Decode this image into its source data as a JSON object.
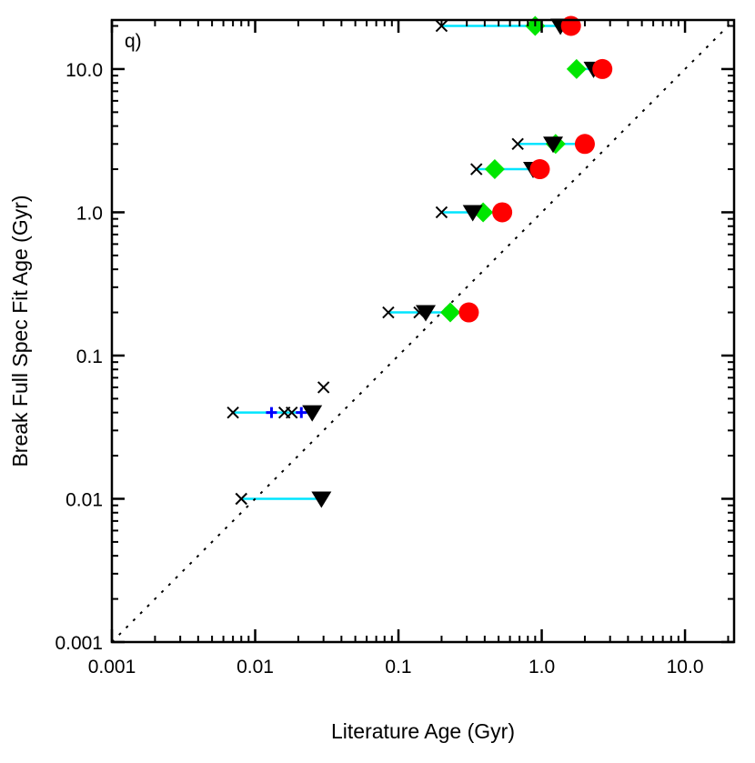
{
  "chart_data": {
    "type": "scatter",
    "panel_label": "q)",
    "xlabel": "Literature Age (Gyr)",
    "ylabel": "Break Full Spec Fit Age (Gyr)",
    "xscale": "log",
    "yscale": "log",
    "xlim": [
      0.001,
      22
    ],
    "ylim": [
      0.001,
      22
    ],
    "x_ticks": [
      {
        "value": 0.001,
        "label": "0.001"
      },
      {
        "value": 0.01,
        "label": "0.01"
      },
      {
        "value": 0.1,
        "label": "0.1"
      },
      {
        "value": 1.0,
        "label": "1.0"
      },
      {
        "value": 10.0,
        "label": "10.0"
      }
    ],
    "y_ticks": [
      {
        "value": 0.001,
        "label": "0.001"
      },
      {
        "value": 0.01,
        "label": "0.01"
      },
      {
        "value": 0.1,
        "label": "0.1"
      },
      {
        "value": 1.0,
        "label": "1.0"
      },
      {
        "value": 10.0,
        "label": "10.0"
      }
    ],
    "reference_line": {
      "type": "one-to-one",
      "style": "dotted",
      "color": "#000000"
    },
    "connector_color": "#00e5ff",
    "connectors": [
      {
        "y": 20,
        "x_range": [
          0.2,
          1.65
        ]
      },
      {
        "y": 10,
        "x_range": [
          1.75,
          2.75
        ]
      },
      {
        "y": 3,
        "x_range": [
          0.68,
          2.05
        ]
      },
      {
        "y": 2,
        "x_range": [
          0.35,
          0.98
        ]
      },
      {
        "y": 1,
        "x_range": [
          0.2,
          0.55
        ]
      },
      {
        "y": 0.2,
        "x_range": [
          0.085,
          0.31
        ]
      },
      {
        "y": 0.04,
        "x_range": [
          0.007,
          0.026
        ]
      },
      {
        "y": 0.01,
        "x_range": [
          0.008,
          0.029
        ]
      }
    ],
    "series": [
      {
        "name": "cross",
        "color": "#000000",
        "marker": "x",
        "points": [
          [
            0.2,
            20
          ],
          [
            0.68,
            3
          ],
          [
            0.35,
            2
          ],
          [
            0.2,
            1
          ],
          [
            0.085,
            0.2
          ],
          [
            0.14,
            0.2
          ],
          [
            0.007,
            0.04
          ],
          [
            0.016,
            0.04
          ],
          [
            0.018,
            0.04
          ],
          [
            0.03,
            0.06
          ],
          [
            0.008,
            0.01
          ]
        ]
      },
      {
        "name": "blue-plus",
        "color": "#0000ff",
        "marker": "+",
        "points": [
          [
            0.013,
            0.04
          ],
          [
            0.021,
            0.04
          ]
        ]
      },
      {
        "name": "green-diamond",
        "color": "#00e600",
        "marker": "diamond",
        "points": [
          [
            0.9,
            20
          ],
          [
            1.75,
            10
          ],
          [
            1.25,
            3
          ],
          [
            0.47,
            2
          ],
          [
            0.39,
            1
          ],
          [
            0.23,
            0.2
          ]
        ]
      },
      {
        "name": "black-triangle",
        "color": "#000000",
        "marker": "triangle-down",
        "points": [
          [
            1.35,
            20
          ],
          [
            2.3,
            10
          ],
          [
            1.2,
            3
          ],
          [
            0.87,
            2
          ],
          [
            0.33,
            1
          ],
          [
            0.155,
            0.2
          ],
          [
            0.025,
            0.04
          ],
          [
            0.029,
            0.01
          ]
        ]
      },
      {
        "name": "red-circle",
        "color": "#ff0000",
        "marker": "circle",
        "points": [
          [
            1.6,
            20
          ],
          [
            2.65,
            10
          ],
          [
            2.0,
            3
          ],
          [
            0.97,
            2
          ],
          [
            0.53,
            1
          ],
          [
            0.31,
            0.2
          ]
        ]
      }
    ]
  }
}
